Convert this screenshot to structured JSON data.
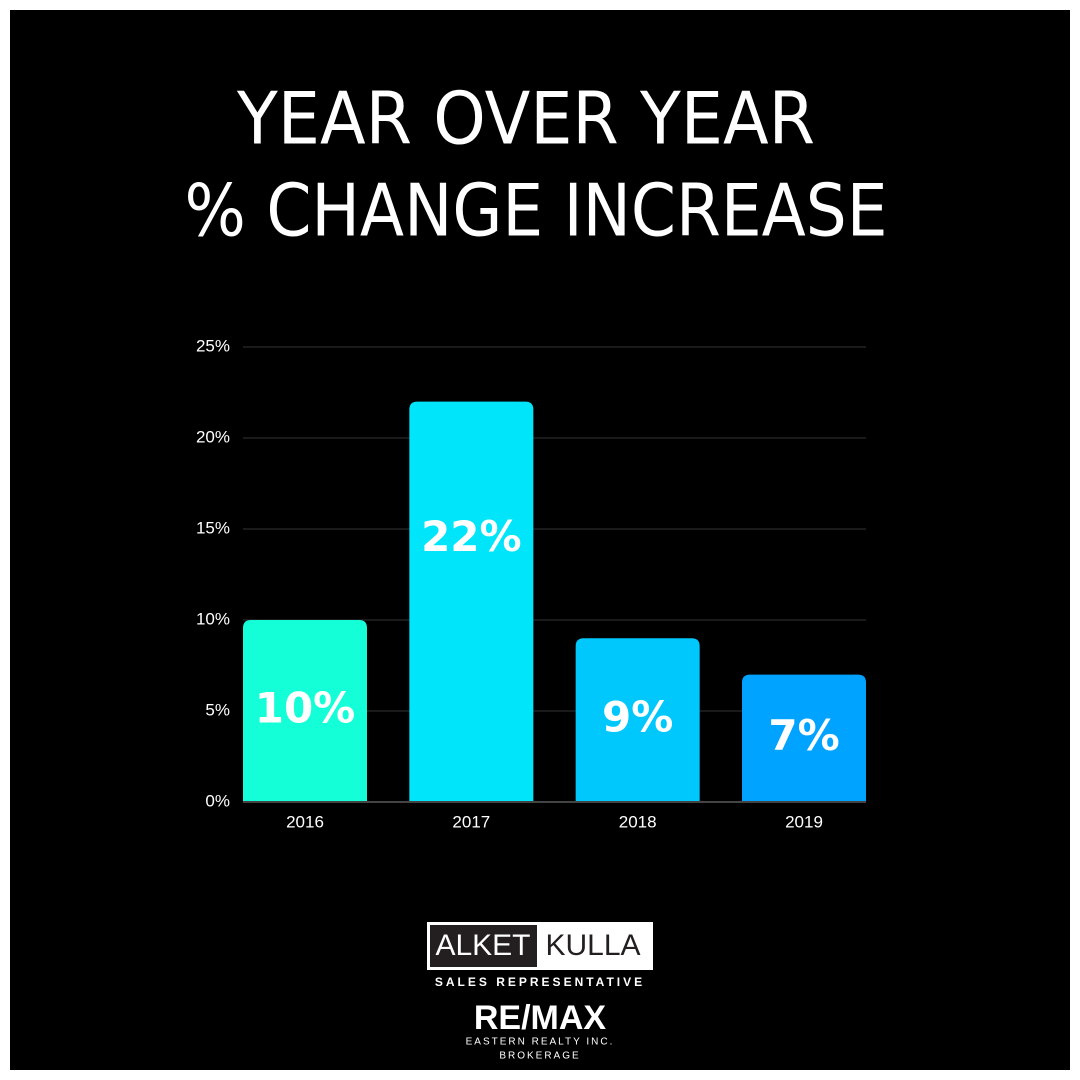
{
  "chart_data": {
    "type": "bar",
    "title": [
      "YEAR OVER YEAR",
      "% CHANGE INCREASE"
    ],
    "categories": [
      "2016",
      "2017",
      "2018",
      "2019"
    ],
    "values": [
      10,
      22,
      9,
      7
    ],
    "value_labels": [
      "10%",
      "22%",
      "9%",
      "7%"
    ],
    "colors": [
      "#14ffd8",
      "#00e5fa",
      "#00c8fc",
      "#00a3ff"
    ],
    "ylim": [
      0,
      25
    ],
    "yticks": [
      {
        "value": 0,
        "label": "0%"
      },
      {
        "value": 5,
        "label": "5%"
      },
      {
        "value": 10,
        "label": "10%"
      },
      {
        "value": 15,
        "label": "15%"
      },
      {
        "value": 20,
        "label": "20%"
      },
      {
        "value": 25,
        "label": "25%"
      }
    ],
    "grid": true
  },
  "branding": {
    "first_name": "ALKET",
    "last_name": "KULLA",
    "role": "SALES REPRESENTATIVE",
    "brand": "RE/MAX",
    "company": "EASTERN REALTY INC.",
    "company_type": "BROKERAGE"
  }
}
